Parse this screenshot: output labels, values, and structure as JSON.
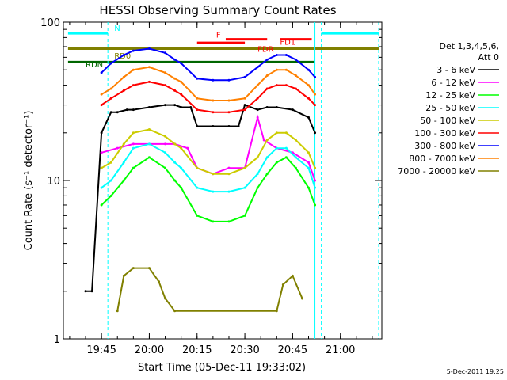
{
  "chart_data": {
    "type": "line",
    "title": "HESSI Observing Summary Count Rates",
    "xlabel": "Start Time (05-Dec-11 19:33:02)",
    "ylabel": "Count Rate (s⁻¹ detector⁻¹)",
    "y_scale": "log",
    "xlim": [
      "19:33:02",
      "21:13:00"
    ],
    "ylim": [
      1,
      100
    ],
    "x_tick_labels": [
      "19:45",
      "20:00",
      "20:15",
      "20:30",
      "20:45",
      "21:00"
    ],
    "y_tick_labels": [
      "1",
      "10",
      "100"
    ],
    "footer_date": "5-Dec-2011 19:25",
    "legend_header": [
      "Det 1,3,4,5,6,",
      "Att 0"
    ],
    "flag_labels": [
      "N",
      "F",
      "FD1",
      "FDR",
      "RD0",
      "RDN"
    ],
    "series": [
      {
        "name": "3 - 6 keV",
        "color": "#000000",
        "x": [
          "19:40",
          "19:42",
          "19:45",
          "19:48",
          "19:50",
          "19:53",
          "19:55",
          "20:00",
          "20:05",
          "20:08",
          "20:10",
          "20:13",
          "20:15",
          "20:20",
          "20:25",
          "20:28",
          "20:30",
          "20:34",
          "20:37",
          "20:40",
          "20:45",
          "20:50",
          "20:52"
        ],
        "y": [
          2,
          2,
          20,
          27,
          27,
          28,
          28,
          29,
          30,
          30,
          29,
          29,
          22,
          22,
          22,
          22,
          30,
          28,
          29,
          29,
          28,
          25,
          20
        ]
      },
      {
        "name": "6 - 12 keV",
        "color": "#ff00ff",
        "x": [
          "19:45",
          "19:50",
          "19:55",
          "20:00",
          "20:05",
          "20:08",
          "20:12",
          "20:15",
          "20:20",
          "20:25",
          "20:30",
          "20:34",
          "20:36",
          "20:40",
          "20:45",
          "20:50",
          "20:52"
        ],
        "y": [
          15,
          16,
          17,
          17,
          17,
          17,
          16,
          12,
          11,
          12,
          12,
          25,
          18,
          16,
          15,
          13,
          10
        ]
      },
      {
        "name": "12 - 25 keV",
        "color": "#00ff00",
        "x": [
          "19:45",
          "19:48",
          "19:52",
          "19:55",
          "20:00",
          "20:05",
          "20:08",
          "20:10",
          "20:15",
          "20:20",
          "20:25",
          "20:30",
          "20:34",
          "20:37",
          "20:40",
          "20:43",
          "20:46",
          "20:50",
          "20:52"
        ],
        "y": [
          7,
          8,
          10,
          12,
          14,
          12,
          10,
          9,
          6,
          5.5,
          5.5,
          6,
          9,
          11,
          13,
          14,
          12,
          9,
          7
        ]
      },
      {
        "name": "25 - 50 keV",
        "color": "#00ffff",
        "x": [
          "19:45",
          "19:48",
          "19:52",
          "19:55",
          "20:00",
          "20:05",
          "20:08",
          "20:10",
          "20:15",
          "20:20",
          "20:25",
          "20:30",
          "20:34",
          "20:37",
          "20:40",
          "20:43",
          "20:46",
          "20:50",
          "20:52"
        ],
        "y": [
          9,
          10,
          13,
          16,
          17,
          15,
          13,
          12,
          9,
          8.5,
          8.5,
          9,
          11,
          14,
          16,
          16,
          14,
          12,
          9
        ]
      },
      {
        "name": "50 - 100 keV",
        "color": "#cccc00",
        "x": [
          "19:45",
          "19:48",
          "19:52",
          "19:55",
          "20:00",
          "20:05",
          "20:08",
          "20:10",
          "20:15",
          "20:20",
          "20:25",
          "20:30",
          "20:34",
          "20:37",
          "20:40",
          "20:43",
          "20:46",
          "20:50",
          "20:52"
        ],
        "y": [
          12,
          13,
          17,
          20,
          21,
          19,
          17,
          16,
          12,
          11,
          11,
          12,
          14,
          18,
          20,
          20,
          18,
          15,
          12
        ]
      },
      {
        "name": "100 - 300 keV",
        "color": "#ff0000",
        "x": [
          "19:45",
          "19:48",
          "19:52",
          "19:55",
          "20:00",
          "20:05",
          "20:08",
          "20:10",
          "20:15",
          "20:20",
          "20:25",
          "20:30",
          "20:34",
          "20:37",
          "20:40",
          "20:43",
          "20:46",
          "20:50",
          "20:52"
        ],
        "y": [
          30,
          33,
          37,
          40,
          42,
          40,
          37,
          35,
          28,
          27,
          27,
          28,
          33,
          38,
          40,
          40,
          38,
          33,
          30
        ]
      },
      {
        "name": "300 - 800 keV",
        "color": "#0000ff",
        "x": [
          "19:45",
          "19:48",
          "19:52",
          "19:55",
          "20:00",
          "20:05",
          "20:08",
          "20:10",
          "20:15",
          "20:20",
          "20:25",
          "20:30",
          "20:34",
          "20:37",
          "20:40",
          "20:43",
          "20:46",
          "20:50",
          "20:52"
        ],
        "y": [
          48,
          55,
          62,
          66,
          68,
          64,
          58,
          55,
          44,
          43,
          43,
          45,
          52,
          58,
          62,
          62,
          58,
          50,
          45
        ]
      },
      {
        "name": "800 - 7000 keV",
        "color": "#ff8000",
        "x": [
          "19:45",
          "19:48",
          "19:52",
          "19:55",
          "20:00",
          "20:05",
          "20:08",
          "20:10",
          "20:15",
          "20:20",
          "20:25",
          "20:30",
          "20:34",
          "20:37",
          "20:40",
          "20:43",
          "20:46",
          "20:50",
          "20:52"
        ],
        "y": [
          35,
          38,
          45,
          50,
          52,
          48,
          44,
          42,
          33,
          32,
          32,
          33,
          40,
          46,
          50,
          50,
          46,
          40,
          35
        ]
      },
      {
        "name": "7000 - 20000 keV",
        "color": "#808000",
        "x": [
          "19:50",
          "19:52",
          "19:55",
          "20:00",
          "20:03",
          "20:05",
          "20:08",
          "20:40",
          "20:42",
          "20:45",
          "20:48"
        ],
        "y": [
          1.5,
          2.5,
          2.8,
          2.8,
          2.3,
          1.8,
          1.5,
          1.5,
          2.2,
          2.5,
          1.8
        ]
      }
    ],
    "flags": [
      {
        "label": "N",
        "color": "#00ffff",
        "x": [
          "19:34:30",
          "19:47"
        ],
        "y": 85
      },
      {
        "label": "N",
        "color": "#00ffff",
        "x": [
          "20:54",
          "21:12"
        ],
        "y": 85
      },
      {
        "label": "F",
        "color": "#ff0000",
        "x": [
          "20:24",
          "20:37"
        ],
        "y": 78
      },
      {
        "label": "FD1",
        "color": "#ff0000",
        "x": [
          "20:41",
          "20:51"
        ],
        "y": 78
      },
      {
        "label": "FDR",
        "color": "#ff0000",
        "x": [
          "20:15",
          "20:30"
        ],
        "y": 74
      },
      {
        "label": "RD0",
        "color": "#808000",
        "x": [
          "19:34:30",
          "21:12"
        ],
        "y": 68
      },
      {
        "label": "RDN",
        "color": "#006600",
        "x": [
          "19:34:30",
          "20:52"
        ],
        "y": 56
      }
    ],
    "legend_placement": "right",
    "grid": false
  }
}
